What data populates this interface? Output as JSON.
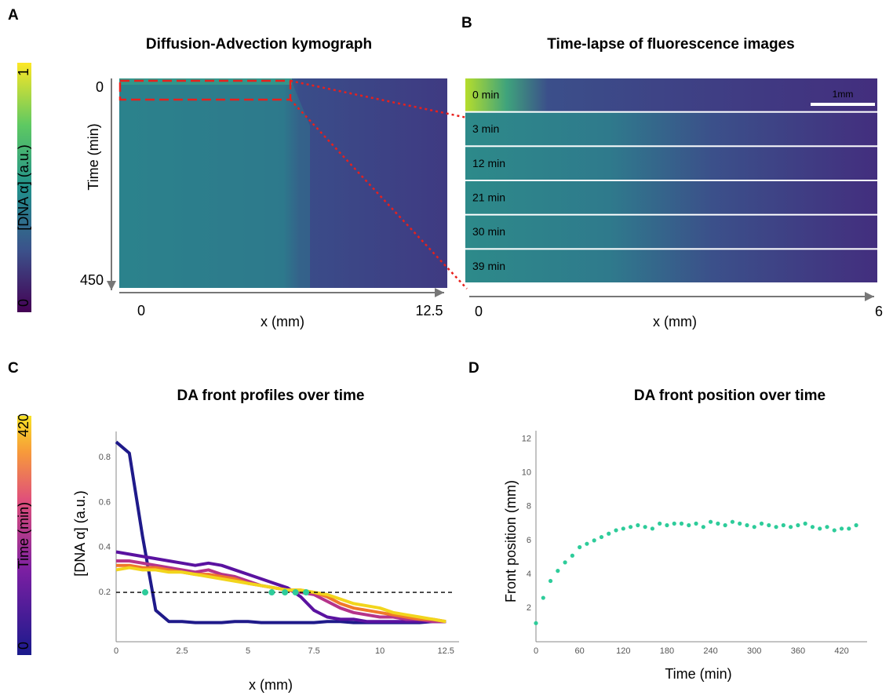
{
  "chart_data": [
    {
      "type": "heatmap",
      "panel": "A",
      "title": "Diffusion-Advection kymograph",
      "colorbar_label": "[DNA α] (a.u.)",
      "colorbar_lim": [
        0,
        1
      ],
      "colorbar_ticks": [
        0,
        1
      ],
      "ylabel": "Time (min)",
      "ylim": [
        0,
        450
      ],
      "yticks": [
        0,
        450
      ],
      "xlabel": "x (mm)",
      "xlim": [
        0,
        12.5
      ],
      "xticks": [
        0,
        12.5
      ]
    },
    {
      "type": "image",
      "panel": "B",
      "title": "Time-lapse of fluorescence images",
      "frames": [
        "0 min",
        "3 min",
        "12 min",
        "21 min",
        "30 min",
        "39 min"
      ],
      "scale_bar": "1mm",
      "xlabel": "x (mm)",
      "xlim": [
        0,
        6
      ],
      "xticks": [
        0,
        6
      ]
    },
    {
      "type": "line",
      "panel": "C",
      "title": "DA front profiles over time",
      "colorbar_label": "Time (min)",
      "colorbar_lim": [
        0,
        420
      ],
      "colorbar_ticks": [
        0,
        420
      ],
      "ylabel": "[DNA α] (a.u.)",
      "xlabel": "x (mm)",
      "xlim": [
        0,
        13
      ],
      "xticks": [
        0,
        2.5,
        5,
        7.5,
        10,
        12.5
      ],
      "ylim": [
        -0.02,
        0.92
      ],
      "yticks": [
        0.2,
        0.4,
        0.6,
        0.8
      ],
      "threshold": 0.2,
      "x": [
        0,
        0.5,
        1,
        1.5,
        2,
        2.5,
        3,
        3.5,
        4,
        4.5,
        5,
        5.5,
        6,
        6.5,
        7,
        7.5,
        8,
        8.5,
        9,
        9.5,
        10,
        10.5,
        11,
        11.5,
        12,
        12.5
      ],
      "series": [
        {
          "color": "#1f1a8a",
          "values": [
            0.87,
            0.82,
            0.45,
            0.12,
            0.07,
            0.07,
            0.065,
            0.065,
            0.065,
            0.07,
            0.07,
            0.065,
            0.065,
            0.065,
            0.065,
            0.065,
            0.07,
            0.07,
            0.065,
            0.065,
            0.065,
            0.065,
            0.065,
            0.065,
            0.07,
            0.07
          ]
        },
        {
          "color": "#5a12a0",
          "values": [
            0.38,
            0.37,
            0.36,
            0.35,
            0.34,
            0.33,
            0.32,
            0.33,
            0.32,
            0.3,
            0.28,
            0.26,
            0.24,
            0.22,
            0.18,
            0.12,
            0.09,
            0.08,
            0.08,
            0.07,
            0.07,
            0.07,
            0.07,
            0.07,
            0.07,
            0.07
          ]
        },
        {
          "color": "#b5338a",
          "values": [
            0.34,
            0.34,
            0.33,
            0.32,
            0.31,
            0.3,
            0.29,
            0.3,
            0.28,
            0.27,
            0.25,
            0.23,
            0.22,
            0.21,
            0.2,
            0.19,
            0.16,
            0.13,
            0.11,
            0.1,
            0.09,
            0.09,
            0.08,
            0.08,
            0.07,
            0.07
          ]
        },
        {
          "color": "#f0782a",
          "values": [
            0.32,
            0.32,
            0.31,
            0.31,
            0.3,
            0.29,
            0.28,
            0.28,
            0.27,
            0.26,
            0.24,
            0.23,
            0.22,
            0.21,
            0.21,
            0.2,
            0.18,
            0.15,
            0.13,
            0.12,
            0.11,
            0.1,
            0.09,
            0.08,
            0.08,
            0.07
          ]
        },
        {
          "color": "#f2d51c",
          "values": [
            0.3,
            0.31,
            0.3,
            0.3,
            0.29,
            0.29,
            0.28,
            0.27,
            0.26,
            0.25,
            0.24,
            0.23,
            0.22,
            0.21,
            0.21,
            0.2,
            0.19,
            0.17,
            0.15,
            0.14,
            0.13,
            0.11,
            0.1,
            0.09,
            0.08,
            0.07
          ]
        }
      ],
      "fronts": {
        "color": "#2ecc9a",
        "x": [
          1.1,
          5.9,
          6.4,
          6.8,
          7.2
        ],
        "values": [
          0.2,
          0.2,
          0.2,
          0.2,
          0.2
        ]
      }
    },
    {
      "type": "scatter",
      "panel": "D",
      "title": "DA front position over time",
      "xlabel": "Time (min)",
      "ylabel": "Front position (mm)",
      "color": "#2ecc9a",
      "xlim": [
        0,
        455
      ],
      "xticks": [
        0,
        60,
        120,
        180,
        240,
        300,
        360,
        420
      ],
      "ylim": [
        0,
        12.5
      ],
      "yticks": [
        2,
        4,
        6,
        8,
        10,
        12
      ],
      "x": [
        0,
        10,
        20,
        30,
        40,
        50,
        60,
        70,
        80,
        90,
        100,
        110,
        120,
        130,
        140,
        150,
        160,
        170,
        180,
        190,
        200,
        210,
        220,
        230,
        240,
        250,
        260,
        270,
        280,
        290,
        300,
        310,
        320,
        330,
        340,
        350,
        360,
        370,
        380,
        390,
        400,
        410,
        420,
        430,
        440
      ],
      "values": [
        1.1,
        2.6,
        3.6,
        4.2,
        4.7,
        5.1,
        5.6,
        5.8,
        6.0,
        6.2,
        6.4,
        6.6,
        6.7,
        6.8,
        6.9,
        6.8,
        6.7,
        7.0,
        6.9,
        7.0,
        7.0,
        6.9,
        7.0,
        6.8,
        7.1,
        7.0,
        6.9,
        7.1,
        7.0,
        6.9,
        6.8,
        7.0,
        6.9,
        6.8,
        6.9,
        6.8,
        6.9,
        7.0,
        6.8,
        6.7,
        6.8,
        6.6,
        6.7,
        6.7,
        6.9
      ]
    }
  ]
}
